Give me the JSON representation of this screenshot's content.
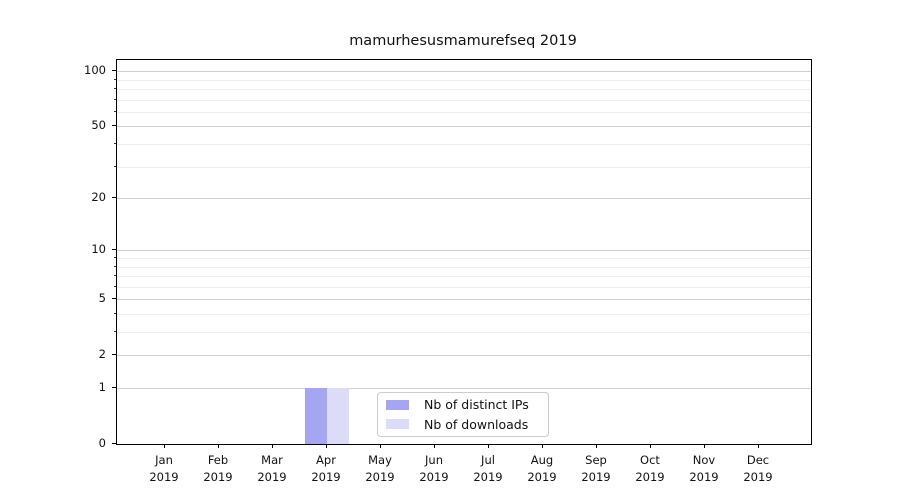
{
  "title": "mamurhesusmamurefseq 2019",
  "chart_data": {
    "type": "bar",
    "title": "mamurhesusmamurefseq 2019",
    "categories": [
      "Jan",
      "Feb",
      "Mar",
      "Apr",
      "May",
      "Jun",
      "Jul",
      "Aug",
      "Sep",
      "Oct",
      "Nov",
      "Dec"
    ],
    "category_year": "2019",
    "series": [
      {
        "name": "Nb of distinct IPs",
        "color": "#a5a5f2",
        "values": [
          0,
          0,
          0,
          1,
          0,
          0,
          0,
          0,
          0,
          0,
          0,
          0
        ]
      },
      {
        "name": "Nb of downloads",
        "color": "#dcdcf8",
        "values": [
          0,
          0,
          0,
          1,
          0,
          0,
          0,
          0,
          0,
          0,
          0,
          0
        ]
      }
    ],
    "xlabel": "",
    "ylabel": "",
    "yscale": "log1p-symlog",
    "ylim": [
      0,
      115
    ],
    "yticks_major": [
      0,
      1,
      2,
      5,
      10,
      20,
      50,
      100
    ],
    "yticks_minor": [
      3,
      4,
      6,
      7,
      8,
      9,
      30,
      40,
      60,
      70,
      80,
      90
    ],
    "grid": "horizontal",
    "grid_major_color": "#cfcfcf",
    "grid_minor_color": "#ededed",
    "legend_position": "lower center inside axes"
  },
  "legend": {
    "items": [
      {
        "label": "Nb of distinct IPs",
        "color": "#a5a5f2"
      },
      {
        "label": "Nb of downloads",
        "color": "#dcdcf8"
      }
    ]
  }
}
